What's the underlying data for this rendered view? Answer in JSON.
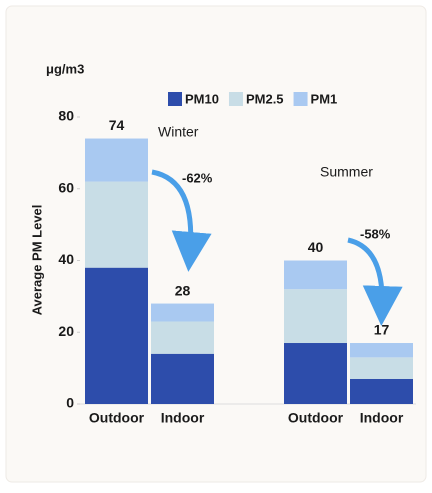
{
  "chart_data": {
    "type": "stacked_bar",
    "unit_label": "μg/m3",
    "y_label": "Average PM Level",
    "categories": [
      "Outdoor",
      "Indoor",
      "Outdoor",
      "Indoor"
    ],
    "group_labels": [
      "Winter",
      "Summer"
    ],
    "series": [
      {
        "name": "PM10",
        "color": "#2d4dab",
        "values": [
          38,
          14,
          17,
          7
        ]
      },
      {
        "name": "PM2.5",
        "color": "#c8dde6",
        "values": [
          24,
          9,
          15,
          6
        ]
      },
      {
        "name": "PM1",
        "color": "#a9c9f1",
        "values": [
          12,
          5,
          8,
          4
        ]
      }
    ],
    "totals": [
      74,
      28,
      40,
      17
    ],
    "annotations": [
      "-62%",
      "-58%"
    ],
    "ylim": [
      0,
      80
    ],
    "yticks": [
      0,
      20,
      40,
      60,
      80
    ],
    "grid": false
  }
}
